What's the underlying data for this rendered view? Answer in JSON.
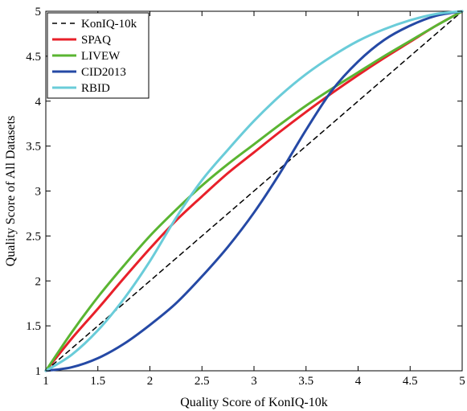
{
  "chart_data": {
    "type": "line",
    "title": "",
    "xlabel": "Quality Score of KonIQ-10k",
    "ylabel": "Quality Score of All Datasets",
    "xlim": [
      1,
      5
    ],
    "ylim": [
      1,
      5
    ],
    "xticks": [
      1,
      1.5,
      2,
      2.5,
      3,
      3.5,
      4,
      4.5,
      5
    ],
    "yticks": [
      1,
      1.5,
      2,
      2.5,
      3,
      3.5,
      4,
      4.5,
      5
    ],
    "xtick_labels": [
      "1",
      "1.5",
      "2",
      "2.5",
      "3",
      "3.5",
      "4",
      "4.5",
      "5"
    ],
    "ytick_labels": [
      "1",
      "1.5",
      "2",
      "2.5",
      "3",
      "3.5",
      "4",
      "4.5",
      "5"
    ],
    "grid": false,
    "legend_position": "top-left",
    "x": [
      1.0,
      1.25,
      1.5,
      1.75,
      2.0,
      2.25,
      2.5,
      2.75,
      3.0,
      3.25,
      3.5,
      3.75,
      4.0,
      4.25,
      4.5,
      4.75,
      5.0
    ],
    "series": [
      {
        "name": "KonIQ-10k",
        "color": "#000000",
        "dashed": true,
        "values": [
          1.0,
          1.25,
          1.5,
          1.75,
          2.0,
          2.25,
          2.5,
          2.75,
          3.0,
          3.25,
          3.5,
          3.75,
          4.0,
          4.25,
          4.5,
          4.75,
          5.0
        ]
      },
      {
        "name": "SPAQ",
        "color": "#e8202a",
        "dashed": false,
        "values": [
          1.0,
          1.36,
          1.69,
          2.03,
          2.36,
          2.67,
          2.94,
          3.2,
          3.43,
          3.66,
          3.88,
          4.09,
          4.29,
          4.48,
          4.66,
          4.84,
          5.0
        ]
      },
      {
        "name": "LIVEW",
        "color": "#5ab532",
        "dashed": false,
        "values": [
          1.0,
          1.43,
          1.82,
          2.17,
          2.5,
          2.79,
          3.06,
          3.3,
          3.52,
          3.74,
          3.95,
          4.14,
          4.32,
          4.5,
          4.67,
          4.84,
          5.0
        ]
      },
      {
        "name": "CID2013",
        "color": "#2549a5",
        "dashed": false,
        "values": [
          1.0,
          1.04,
          1.14,
          1.3,
          1.51,
          1.75,
          2.05,
          2.38,
          2.76,
          3.2,
          3.68,
          4.12,
          4.44,
          4.68,
          4.84,
          4.95,
          5.0
        ]
      },
      {
        "name": "RBID",
        "color": "#6accd9",
        "dashed": false,
        "values": [
          1.0,
          1.18,
          1.45,
          1.8,
          2.22,
          2.7,
          3.12,
          3.46,
          3.78,
          4.06,
          4.3,
          4.5,
          4.67,
          4.8,
          4.9,
          4.97,
          5.0
        ]
      }
    ]
  }
}
